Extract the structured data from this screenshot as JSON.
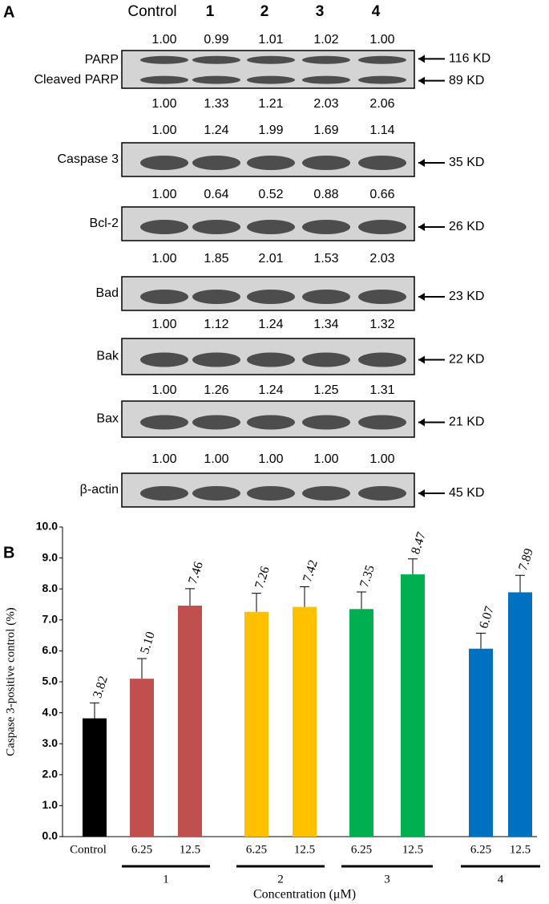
{
  "panel_a": {
    "label": "A",
    "lanes": [
      "Control",
      "1",
      "2",
      "3",
      "4"
    ],
    "blots": [
      {
        "labels": [
          "PARP",
          "Cleaved PARP"
        ],
        "sizes": [
          "116 KD",
          "89 KD"
        ],
        "ratios": [
          "1.00",
          "0.99",
          "1.01",
          "1.02",
          "1.00"
        ],
        "ratios_below": [
          "1.00",
          "1.33",
          "1.21",
          "2.03",
          "2.06"
        ]
      },
      {
        "labels": [
          "Caspase 3"
        ],
        "sizes": [
          "35 KD"
        ],
        "ratios": [
          "1.00",
          "1.24",
          "1.99",
          "1.69",
          "1.14"
        ]
      },
      {
        "labels": [
          "Bcl-2"
        ],
        "sizes": [
          "26 KD"
        ],
        "ratios": [
          "1.00",
          "0.64",
          "0.52",
          "0.88",
          "0.66"
        ]
      },
      {
        "labels": [
          "Bad"
        ],
        "sizes": [
          "23 KD"
        ],
        "ratios": [
          "1.00",
          "1.85",
          "2.01",
          "1.53",
          "2.03"
        ]
      },
      {
        "labels": [
          "Bak"
        ],
        "sizes": [
          "22 KD"
        ],
        "ratios": [
          "1.00",
          "1.12",
          "1.24",
          "1.34",
          "1.32"
        ]
      },
      {
        "labels": [
          "Bax"
        ],
        "sizes": [
          "21 KD"
        ],
        "ratios": [
          "1.00",
          "1.26",
          "1.24",
          "1.25",
          "1.31"
        ]
      },
      {
        "labels": [
          "β-actin"
        ],
        "sizes": [
          "45 KD"
        ],
        "ratios": [
          "1.00",
          "1.00",
          "1.00",
          "1.00",
          "1.00"
        ]
      }
    ]
  },
  "chart_data": {
    "type": "bar",
    "panel_label": "B",
    "ylabel": "Caspase 3-positive control (%)",
    "xlabel": "Concentration (μM)",
    "categories": [
      "Control",
      "6.25",
      "12.5",
      "6.25",
      "12.5",
      "6.25",
      "12.5",
      "6.25",
      "12.5"
    ],
    "groups": [
      "1",
      "2",
      "3",
      "4"
    ],
    "values": [
      3.82,
      5.1,
      7.46,
      7.26,
      7.42,
      7.35,
      8.47,
      6.07,
      7.89
    ],
    "value_labels": [
      "3.82",
      "5.10",
      "7.46",
      "7.26",
      "7.42",
      "7.35",
      "8.47",
      "6.07",
      "7.89"
    ],
    "errors": [
      0.5,
      0.65,
      0.55,
      0.6,
      0.65,
      0.55,
      0.5,
      0.5,
      0.55
    ],
    "colors": [
      "#000000",
      "#c0504d",
      "#c0504d",
      "#ffc000",
      "#ffc000",
      "#00b050",
      "#00b050",
      "#0070c0",
      "#0070c0"
    ],
    "ylim": [
      0,
      10
    ],
    "yticks": [
      {
        "value": 0,
        "label": "0.0"
      },
      {
        "value": 1,
        "label": "1.0"
      },
      {
        "value": 2,
        "label": "2.0"
      },
      {
        "value": 3,
        "label": "3.0"
      },
      {
        "value": 4,
        "label": "4.0"
      },
      {
        "value": 5,
        "label": "5.0"
      },
      {
        "value": 6,
        "label": "6.0"
      },
      {
        "value": 7,
        "label": "7.0"
      },
      {
        "value": 8,
        "label": "8.0"
      },
      {
        "value": 9,
        "label": "9.0"
      },
      {
        "value": 10,
        "label": "10.0"
      }
    ]
  }
}
